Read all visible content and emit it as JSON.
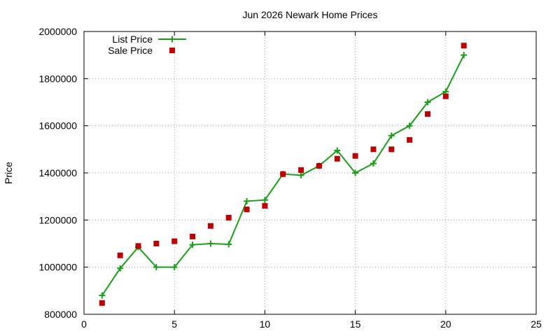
{
  "chart_data": {
    "type": "line",
    "title": "Jun 2026 Newark Home Prices",
    "xlabel": "",
    "ylabel": "Price",
    "xlim": [
      0,
      25
    ],
    "ylim": [
      800000,
      2000000
    ],
    "xticks": [
      0,
      5,
      10,
      15,
      20,
      25
    ],
    "yticks": [
      800000,
      1000000,
      1200000,
      1400000,
      1600000,
      1800000,
      2000000
    ],
    "grid": true,
    "legend_position": "top-left",
    "series": [
      {
        "name": "List Price",
        "style": "line-with-plus-markers",
        "color": "#1a9e1a",
        "x": [
          1,
          2,
          3,
          4,
          5,
          6,
          7,
          8,
          9,
          10,
          11,
          12,
          13,
          14,
          15,
          16,
          17,
          18,
          19,
          20,
          21
        ],
        "values": [
          880000,
          995000,
          1085000,
          1000000,
          1000000,
          1095000,
          1100000,
          1097000,
          1280000,
          1285000,
          1395000,
          1390000,
          1430000,
          1495000,
          1400000,
          1440000,
          1558000,
          1600000,
          1700000,
          1745000,
          1900000
        ]
      },
      {
        "name": "Sale Price",
        "style": "square-markers",
        "color": "#c00000",
        "x": [
          1,
          2,
          3,
          4,
          5,
          6,
          7,
          8,
          9,
          10,
          11,
          12,
          13,
          14,
          15,
          16,
          17,
          18,
          19,
          20,
          21
        ],
        "values": [
          848000,
          1050000,
          1090000,
          1100000,
          1110000,
          1130000,
          1175000,
          1210000,
          1245000,
          1260000,
          1395000,
          1412000,
          1430000,
          1460000,
          1472000,
          1500000,
          1500000,
          1540000,
          1650000,
          1725000,
          1940000
        ]
      }
    ]
  }
}
